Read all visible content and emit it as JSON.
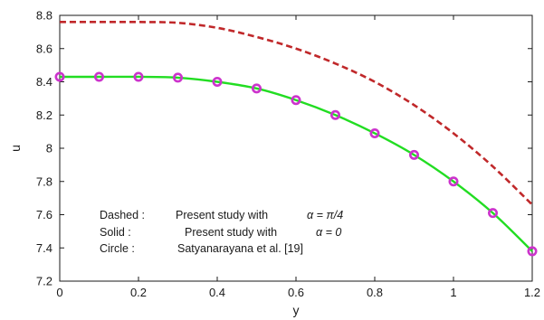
{
  "chart_data": {
    "type": "line",
    "xlabel": "y",
    "ylabel": "u",
    "xlim": [
      0,
      1.2
    ],
    "ylim": [
      7.2,
      8.8
    ],
    "xticks": [
      "0",
      "0.2",
      "0.4",
      "0.6",
      "0.8",
      "1",
      "1.2"
    ],
    "yticks": [
      "7.2",
      "7.4",
      "7.6",
      "7.8",
      "8",
      "8.2",
      "8.4",
      "8.6",
      "8.8"
    ],
    "grid": false,
    "legend_position": "bottom-left",
    "legend": [
      {
        "label": "Dashed :",
        "text": "Present study with",
        "math": "α = π/4"
      },
      {
        "label": "Solid :",
        "text": "Present study with",
        "math": "α = 0"
      },
      {
        "label": "Circle :",
        "text": "Satyanarayana et al. [19]",
        "math": ""
      }
    ],
    "series": [
      {
        "style": "dashed",
        "color": "#c0282a",
        "x": [
          0,
          0.1,
          0.2,
          0.3,
          0.4,
          0.5,
          0.6,
          0.7,
          0.8,
          0.9,
          1.0,
          1.1,
          1.2
        ],
        "y": [
          8.76,
          8.76,
          8.76,
          8.755,
          8.725,
          8.67,
          8.6,
          8.51,
          8.4,
          8.26,
          8.09,
          7.89,
          7.66
        ]
      },
      {
        "style": "solid",
        "color": "#22dd22",
        "x": [
          0,
          0.1,
          0.2,
          0.3,
          0.4,
          0.5,
          0.6,
          0.7,
          0.8,
          0.9,
          1.0,
          1.1,
          1.2
        ],
        "y": [
          8.43,
          8.43,
          8.43,
          8.425,
          8.4,
          8.36,
          8.29,
          8.2,
          8.09,
          7.96,
          7.8,
          7.61,
          7.38
        ]
      },
      {
        "style": "markers",
        "color": "#cc33cc",
        "x": [
          0,
          0.1,
          0.2,
          0.3,
          0.4,
          0.5,
          0.6,
          0.7,
          0.8,
          0.9,
          1.0,
          1.1,
          1.2
        ],
        "y": [
          8.43,
          8.43,
          8.43,
          8.425,
          8.4,
          8.36,
          8.29,
          8.2,
          8.09,
          7.96,
          7.8,
          7.61,
          7.38
        ]
      }
    ]
  }
}
